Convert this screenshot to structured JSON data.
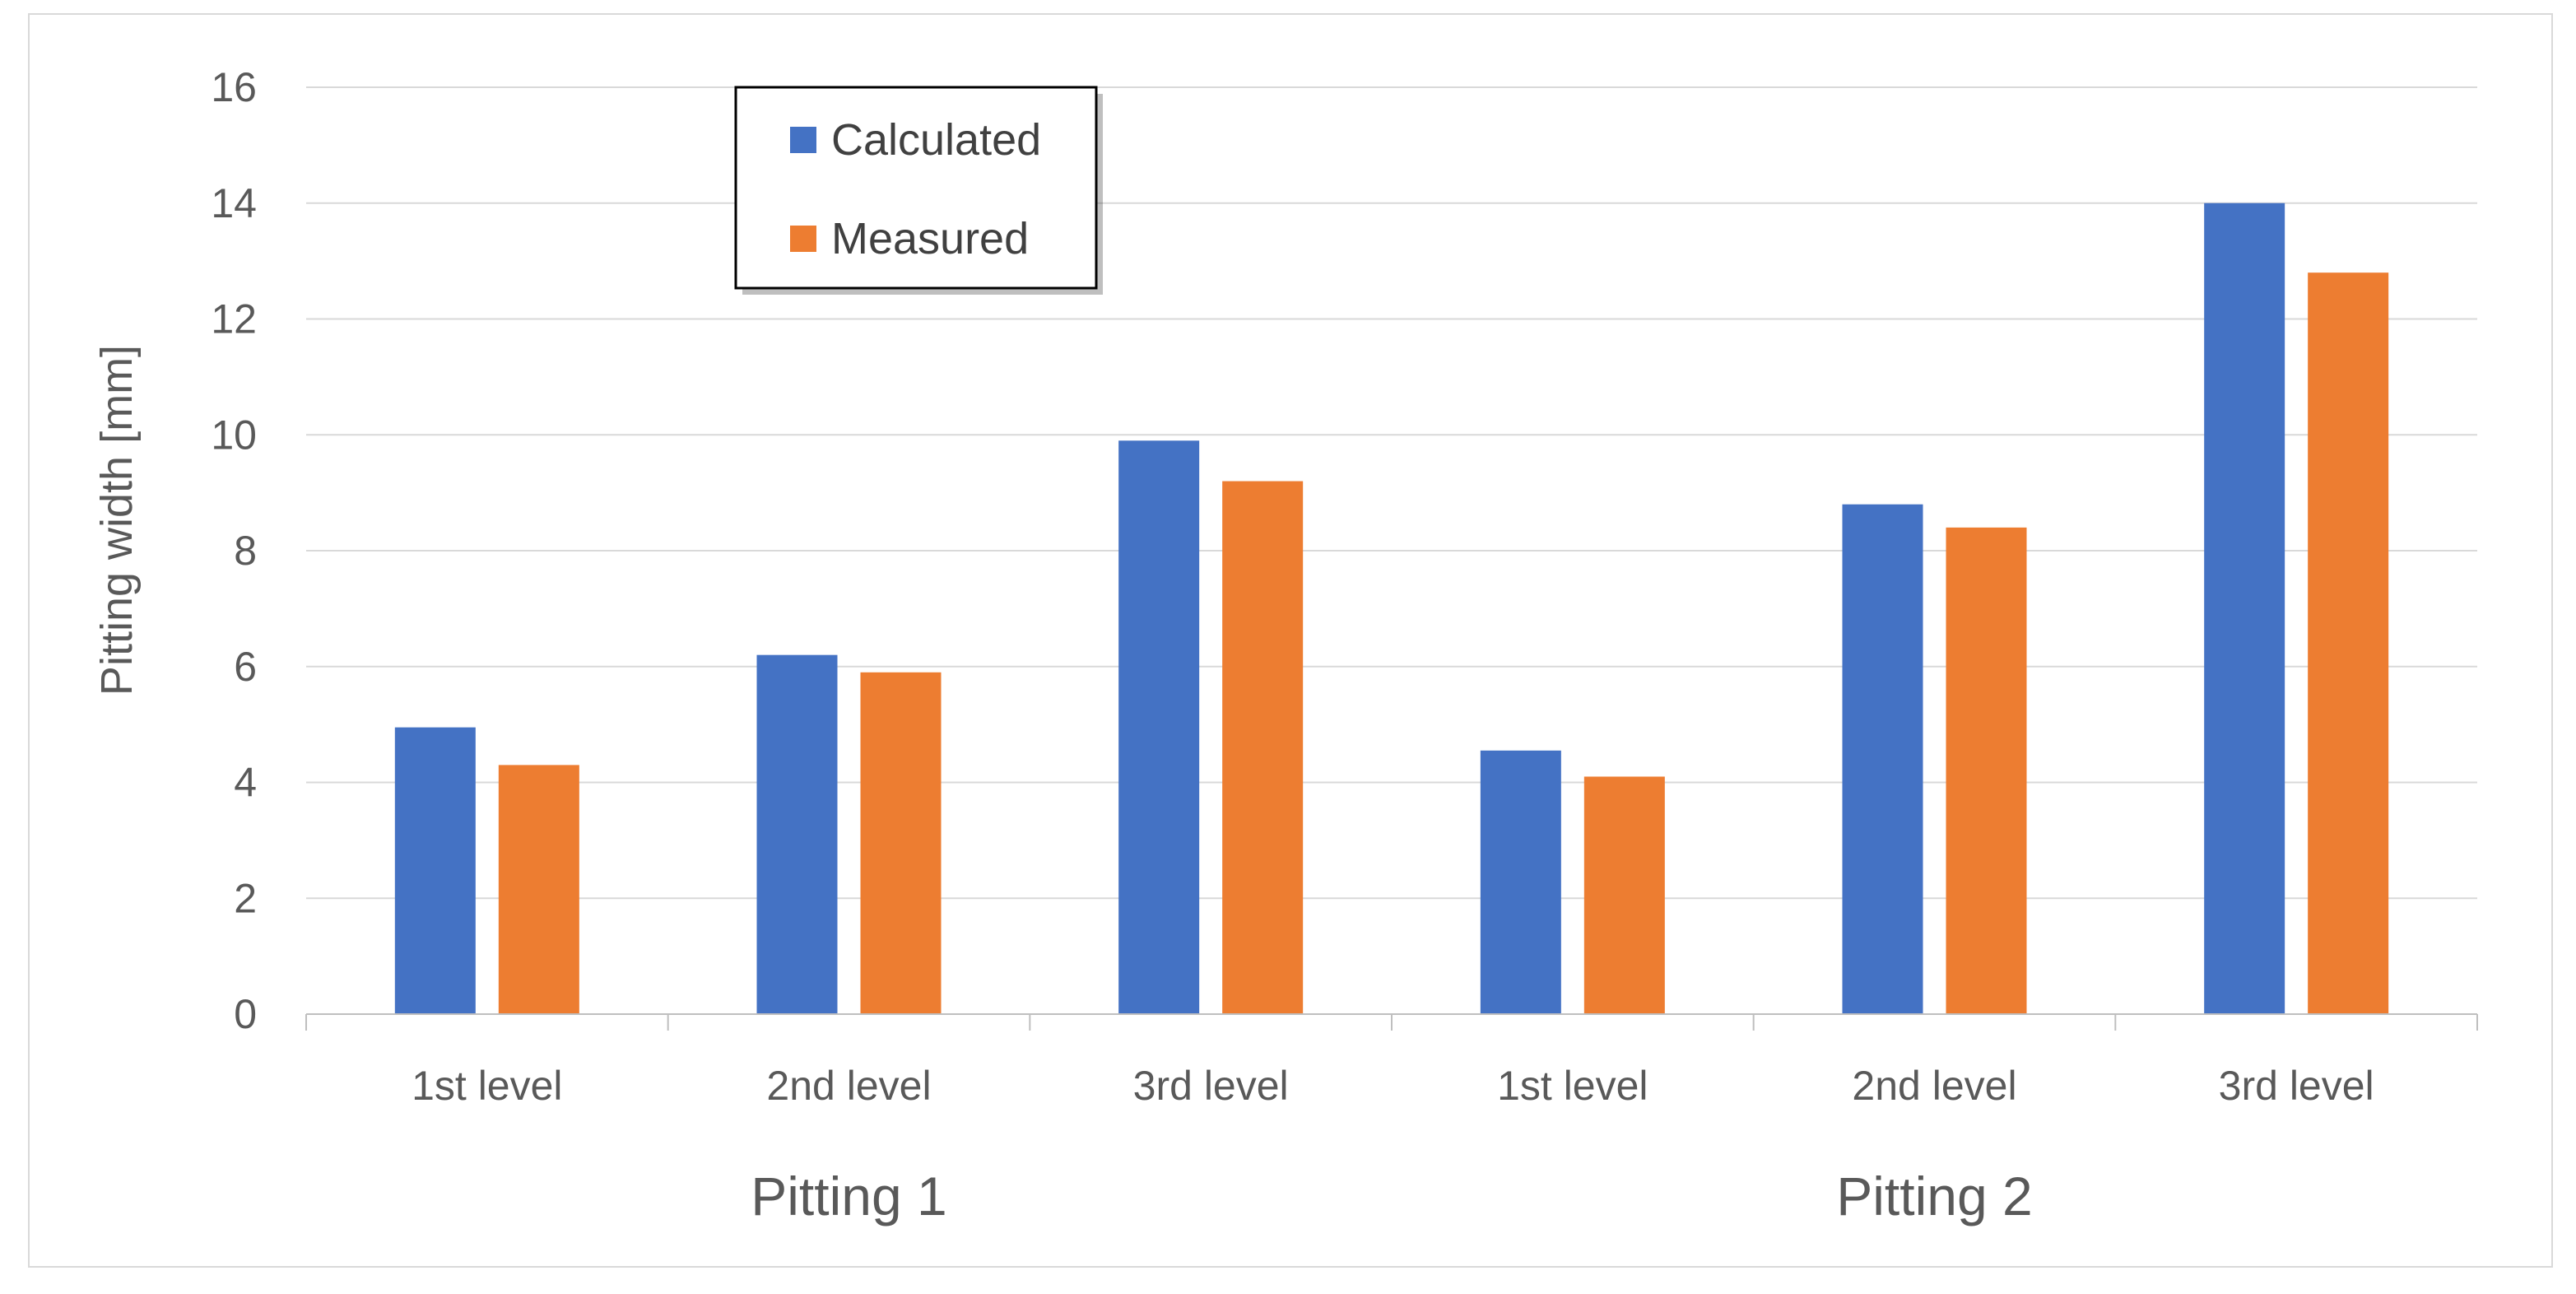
{
  "chart_data": {
    "type": "bar",
    "title": "",
    "xlabel": "",
    "ylabel": "Pitting width [mm]",
    "ylim": [
      0,
      16
    ],
    "yticks": [
      0,
      2,
      4,
      6,
      8,
      10,
      12,
      14,
      16
    ],
    "grid": true,
    "legend_position": "top-left",
    "categories": [
      "1st level",
      "2nd level",
      "3rd level",
      "1st level",
      "2nd level",
      "3rd level"
    ],
    "groups": [
      {
        "label": "Pitting 1",
        "span": [
          0,
          2
        ]
      },
      {
        "label": "Pitting 2",
        "span": [
          3,
          5
        ]
      }
    ],
    "series": [
      {
        "name": "Calculated",
        "color": "#4472C4",
        "values": [
          4.95,
          6.2,
          9.9,
          4.55,
          8.8,
          14.0
        ]
      },
      {
        "name": "Measured",
        "color": "#ED7D31",
        "values": [
          4.3,
          5.9,
          9.2,
          4.1,
          8.4,
          12.8
        ]
      }
    ]
  }
}
